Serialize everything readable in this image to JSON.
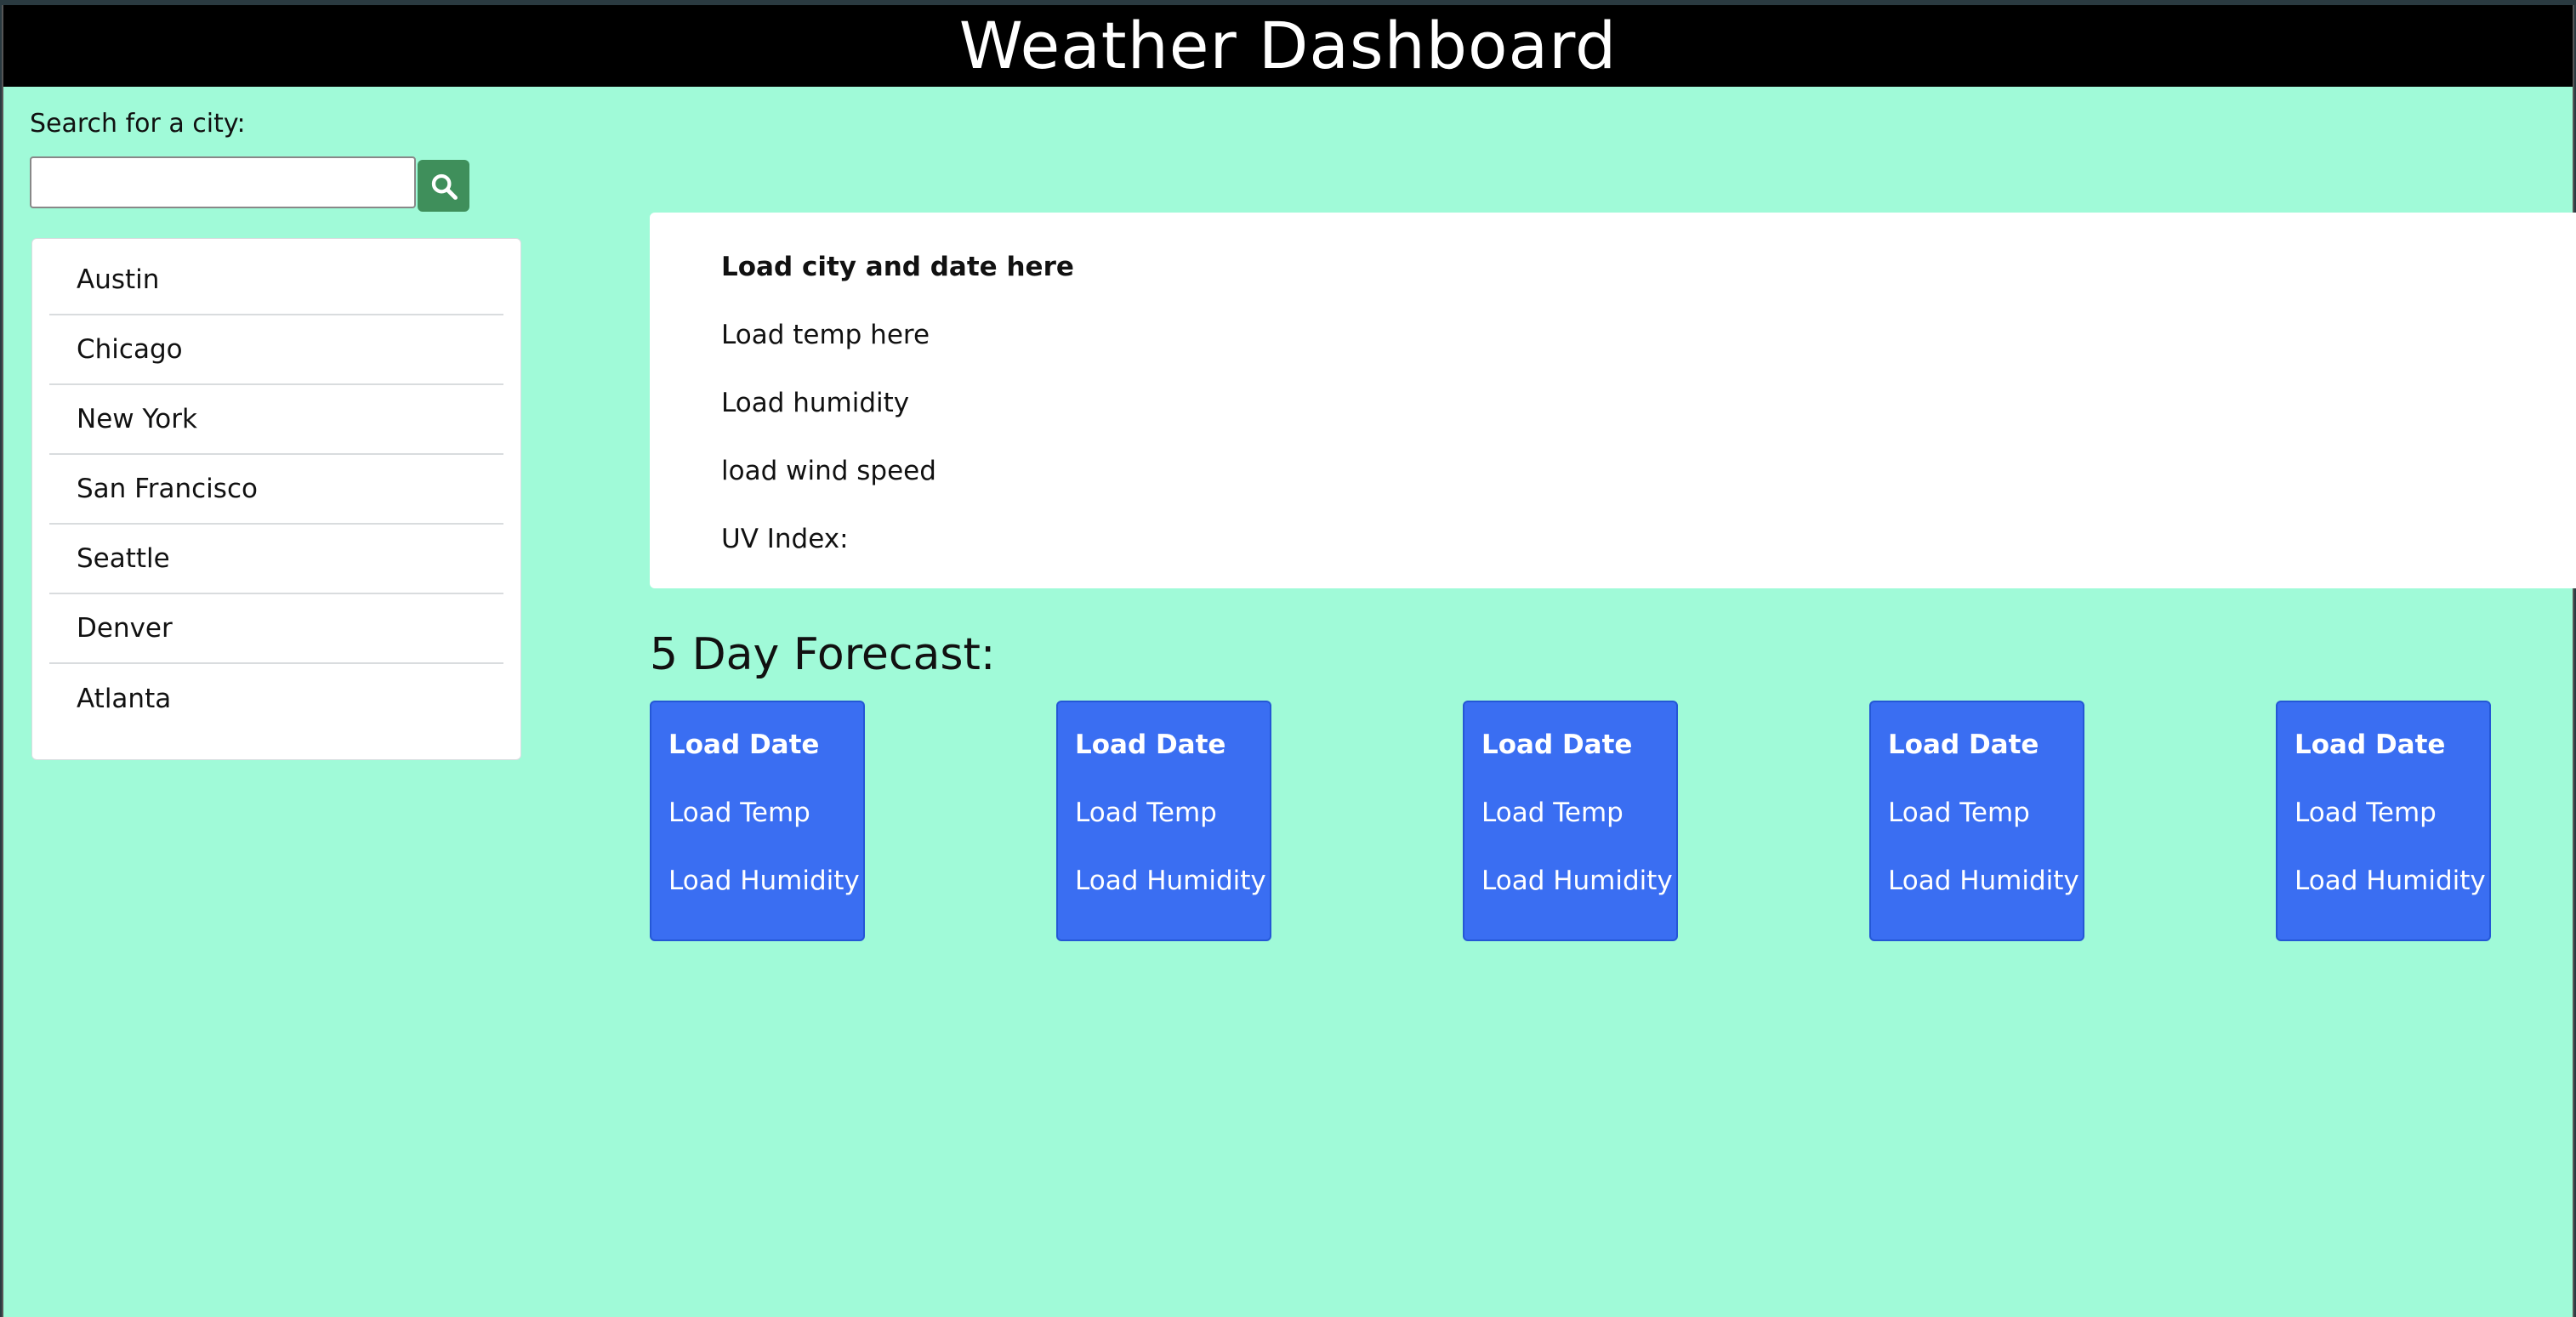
{
  "header": {
    "title": "Weather Dashboard"
  },
  "search": {
    "label": "Search for a city:",
    "value": "",
    "placeholder": "",
    "button_icon": "search-icon"
  },
  "cities": [
    {
      "label": "Austin"
    },
    {
      "label": "Chicago"
    },
    {
      "label": "New York"
    },
    {
      "label": "San Francisco"
    },
    {
      "label": "Seattle"
    },
    {
      "label": "Denver"
    },
    {
      "label": "Atlanta"
    }
  ],
  "current": {
    "city_date": "Load city and date here",
    "temp": "Load temp here",
    "humidity": "Load humidity",
    "wind": "load wind speed",
    "uv": "UV Index:"
  },
  "forecast": {
    "title": "5 Day Forecast:",
    "days": [
      {
        "date": "Load Date",
        "temp": "Load Temp",
        "humidity": "Load Humidity"
      },
      {
        "date": "Load Date",
        "temp": "Load Temp",
        "humidity": "Load Humidity"
      },
      {
        "date": "Load Date",
        "temp": "Load Temp",
        "humidity": "Load Humidity"
      },
      {
        "date": "Load Date",
        "temp": "Load Temp",
        "humidity": "Load Humidity"
      },
      {
        "date": "Load Date",
        "temp": "Load Temp",
        "humidity": "Load Humidity"
      }
    ]
  },
  "colors": {
    "background": "#a0fad8",
    "header": "#000000",
    "search_button": "#3f8f5b",
    "forecast_card": "#3a6ef2"
  }
}
